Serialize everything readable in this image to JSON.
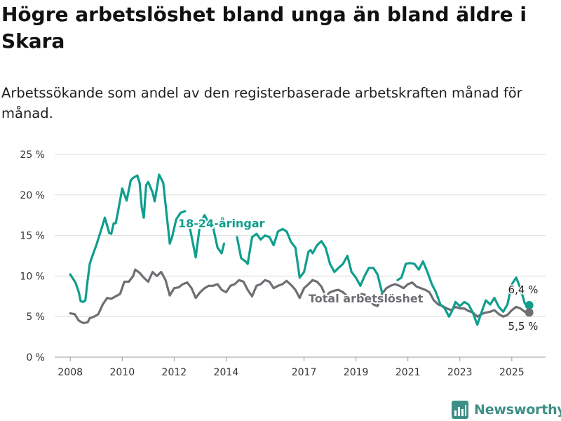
{
  "title": "Högre arbetslöshet bland unga än bland äldre i Skara",
  "subtitle": "Arbetssökande som andel av den registerbaserade arbetskraften månad för månad.",
  "brand": "Newsworthy",
  "colors": {
    "youth": "#0f9e8e",
    "total": "#6e6e73",
    "grid": "#dcdcdc",
    "brand": "#3e8f86"
  },
  "chart_data": {
    "type": "line",
    "x_unit": "year (decimal)",
    "y_unit": "percent",
    "xlim": [
      2007.4,
      2026.3
    ],
    "ylim": [
      0,
      25
    ],
    "grid": true,
    "yticks": [
      0,
      5,
      10,
      15,
      20,
      25
    ],
    "ytick_labels": [
      "0 %",
      "5 %",
      "10 %",
      "15 %",
      "20 %",
      "25 %"
    ],
    "xticks": [
      2008,
      2010,
      2012,
      2014,
      2017,
      2019,
      2021,
      2023,
      2025
    ],
    "xtick_labels": [
      "2008",
      "2010",
      "2012",
      "2014",
      "2017",
      "2019",
      "2021",
      "2023",
      "2025"
    ],
    "series": [
      {
        "name": "18-24-åringar",
        "color": "#0f9e8e",
        "end_label": "6,4 %",
        "points": [
          [
            2008.0,
            10.2
          ],
          [
            2008.2,
            9.2
          ],
          [
            2008.33,
            8.0
          ],
          [
            2008.4,
            6.9
          ],
          [
            2008.5,
            6.8
          ],
          [
            2008.58,
            7.0
          ],
          [
            2008.67,
            9.5
          ],
          [
            2008.75,
            11.5
          ],
          [
            2008.83,
            12.3
          ],
          [
            2009.0,
            13.8
          ],
          [
            2009.17,
            15.5
          ],
          [
            2009.33,
            17.2
          ],
          [
            2009.5,
            15.3
          ],
          [
            2009.58,
            15.2
          ],
          [
            2009.67,
            16.5
          ],
          [
            2009.75,
            16.5
          ],
          [
            2009.83,
            17.8
          ],
          [
            2010.0,
            20.8
          ],
          [
            2010.17,
            19.3
          ],
          [
            2010.33,
            21.8
          ],
          [
            2010.42,
            22.1
          ],
          [
            2010.58,
            22.4
          ],
          [
            2010.67,
            21.5
          ],
          [
            2010.75,
            18.5
          ],
          [
            2010.83,
            17.2
          ],
          [
            2010.92,
            21.2
          ],
          [
            2011.0,
            21.6
          ],
          [
            2011.17,
            20.3
          ],
          [
            2011.25,
            19.2
          ],
          [
            2011.42,
            22.5
          ],
          [
            2011.58,
            21.5
          ],
          [
            2011.83,
            14.0
          ],
          [
            2011.92,
            14.8
          ],
          [
            2012.08,
            17.0
          ],
          [
            2012.25,
            17.8
          ],
          [
            2012.42,
            18.0
          ]
        ],
        "points_2": [
          [
            2012.6,
            16.0
          ],
          [
            2012.83,
            12.3
          ],
          [
            2013.0,
            16.5
          ],
          [
            2013.17,
            17.5
          ],
          [
            2013.33,
            16.5
          ],
          [
            2013.5,
            16.0
          ],
          [
            2013.67,
            13.5
          ],
          [
            2013.83,
            12.8
          ],
          [
            2013.92,
            14.0
          ]
        ],
        "points_3": [
          [
            2014.42,
            14.8
          ],
          [
            2014.58,
            12.2
          ],
          [
            2014.75,
            11.8
          ],
          [
            2014.83,
            11.5
          ],
          [
            2015.0,
            14.8
          ],
          [
            2015.17,
            15.2
          ],
          [
            2015.33,
            14.5
          ],
          [
            2015.5,
            15.0
          ],
          [
            2015.67,
            14.8
          ],
          [
            2015.83,
            13.8
          ],
          [
            2016.0,
            15.5
          ],
          [
            2016.17,
            15.8
          ],
          [
            2016.33,
            15.5
          ],
          [
            2016.5,
            14.2
          ],
          [
            2016.67,
            13.5
          ],
          [
            2016.83,
            9.8
          ],
          [
            2017.0,
            10.5
          ],
          [
            2017.17,
            13.0
          ],
          [
            2017.25,
            13.2
          ],
          [
            2017.33,
            12.8
          ],
          [
            2017.5,
            13.8
          ],
          [
            2017.67,
            14.3
          ],
          [
            2017.83,
            13.5
          ],
          [
            2018.0,
            11.5
          ],
          [
            2018.17,
            10.5
          ],
          [
            2018.33,
            11.0
          ],
          [
            2018.5,
            11.5
          ],
          [
            2018.67,
            12.5
          ],
          [
            2018.83,
            10.5
          ],
          [
            2019.0,
            9.8
          ],
          [
            2019.17,
            8.8
          ],
          [
            2019.33,
            10.0
          ],
          [
            2019.5,
            11.0
          ],
          [
            2019.67,
            11.0
          ],
          [
            2019.83,
            10.2
          ],
          [
            2020.0,
            8.0
          ]
        ],
        "points_4": [
          [
            2020.6,
            9.5
          ],
          [
            2020.75,
            9.8
          ],
          [
            2020.92,
            11.5
          ],
          [
            2021.08,
            11.6
          ],
          [
            2021.25,
            11.5
          ],
          [
            2021.42,
            10.8
          ],
          [
            2021.58,
            11.8
          ],
          [
            2021.75,
            10.5
          ],
          [
            2021.92,
            9.0
          ],
          [
            2022.08,
            8.0
          ],
          [
            2022.25,
            6.5
          ],
          [
            2022.42,
            6.0
          ],
          [
            2022.58,
            5.0
          ],
          [
            2022.67,
            5.5
          ],
          [
            2022.83,
            6.8
          ],
          [
            2023.0,
            6.3
          ],
          [
            2023.17,
            6.8
          ],
          [
            2023.33,
            6.5
          ],
          [
            2023.5,
            5.5
          ],
          [
            2023.67,
            4.0
          ],
          [
            2023.83,
            5.5
          ],
          [
            2024.0,
            7.0
          ],
          [
            2024.17,
            6.5
          ],
          [
            2024.33,
            7.3
          ],
          [
            2024.5,
            6.2
          ],
          [
            2024.67,
            5.6
          ],
          [
            2024.83,
            6.5
          ],
          [
            2025.0,
            9.0
          ],
          [
            2025.17,
            9.8
          ],
          [
            2025.33,
            8.5
          ],
          [
            2025.5,
            6.6
          ],
          [
            2025.67,
            6.4
          ]
        ]
      },
      {
        "name": "Total arbetslöshet",
        "color": "#6e6e73",
        "end_label": "5,5 %",
        "points": [
          [
            2008.0,
            5.4
          ],
          [
            2008.17,
            5.3
          ],
          [
            2008.33,
            4.5
          ],
          [
            2008.5,
            4.2
          ],
          [
            2008.67,
            4.3
          ],
          [
            2008.75,
            4.8
          ],
          [
            2008.92,
            5.0
          ],
          [
            2009.08,
            5.3
          ],
          [
            2009.25,
            6.5
          ],
          [
            2009.42,
            7.3
          ],
          [
            2009.58,
            7.2
          ],
          [
            2009.75,
            7.5
          ],
          [
            2009.92,
            7.8
          ],
          [
            2010.08,
            9.3
          ],
          [
            2010.25,
            9.3
          ],
          [
            2010.42,
            10.0
          ],
          [
            2010.5,
            10.8
          ],
          [
            2010.67,
            10.4
          ],
          [
            2010.83,
            9.8
          ],
          [
            2011.0,
            9.3
          ],
          [
            2011.17,
            10.5
          ],
          [
            2011.33,
            10.0
          ],
          [
            2011.5,
            10.5
          ],
          [
            2011.67,
            9.5
          ],
          [
            2011.83,
            7.6
          ],
          [
            2012.0,
            8.5
          ],
          [
            2012.17,
            8.6
          ],
          [
            2012.33,
            9.0
          ],
          [
            2012.5,
            9.2
          ],
          [
            2012.67,
            8.5
          ],
          [
            2012.83,
            7.3
          ],
          [
            2013.0,
            8.0
          ],
          [
            2013.17,
            8.5
          ],
          [
            2013.33,
            8.8
          ],
          [
            2013.5,
            8.8
          ],
          [
            2013.67,
            9.0
          ],
          [
            2013.83,
            8.3
          ],
          [
            2014.0,
            8.0
          ],
          [
            2014.17,
            8.8
          ],
          [
            2014.33,
            9.0
          ],
          [
            2014.5,
            9.5
          ],
          [
            2014.67,
            9.3
          ],
          [
            2014.83,
            8.3
          ],
          [
            2015.0,
            7.5
          ],
          [
            2015.17,
            8.8
          ],
          [
            2015.33,
            9.0
          ],
          [
            2015.5,
            9.5
          ],
          [
            2015.67,
            9.3
          ],
          [
            2015.83,
            8.5
          ],
          [
            2016.0,
            8.8
          ],
          [
            2016.17,
            9.0
          ],
          [
            2016.33,
            9.4
          ],
          [
            2016.5,
            8.9
          ],
          [
            2016.67,
            8.3
          ],
          [
            2016.83,
            7.3
          ],
          [
            2017.0,
            8.5
          ],
          [
            2017.17,
            9.0
          ],
          [
            2017.33,
            9.5
          ],
          [
            2017.5,
            9.3
          ],
          [
            2017.67,
            8.7
          ],
          [
            2017.83,
            7.5
          ],
          [
            2018.0,
            8.0
          ],
          [
            2018.17,
            8.2
          ],
          [
            2018.33,
            8.3
          ],
          [
            2018.5,
            8.0
          ],
          [
            2018.67,
            7.5
          ],
          [
            2018.83,
            7.0
          ],
          [
            2019.0,
            7.5
          ],
          [
            2019.17,
            7.8
          ],
          [
            2019.33,
            7.7
          ],
          [
            2019.5,
            7.2
          ],
          [
            2019.67,
            6.5
          ],
          [
            2019.83,
            6.3
          ],
          [
            2020.0,
            7.8
          ],
          [
            2020.17,
            8.5
          ],
          [
            2020.33,
            8.8
          ],
          [
            2020.5,
            9.0
          ],
          [
            2020.67,
            8.8
          ],
          [
            2020.83,
            8.5
          ],
          [
            2021.0,
            9.0
          ],
          [
            2021.17,
            9.2
          ],
          [
            2021.33,
            8.7
          ],
          [
            2021.5,
            8.5
          ],
          [
            2021.67,
            8.3
          ],
          [
            2021.83,
            8.0
          ],
          [
            2022.0,
            7.0
          ],
          [
            2022.17,
            6.5
          ],
          [
            2022.33,
            6.3
          ],
          [
            2022.5,
            6.0
          ],
          [
            2022.67,
            5.8
          ],
          [
            2022.83,
            6.2
          ],
          [
            2023.0,
            6.0
          ],
          [
            2023.17,
            6.0
          ],
          [
            2023.33,
            5.7
          ],
          [
            2023.5,
            5.5
          ],
          [
            2023.67,
            5.0
          ],
          [
            2023.83,
            5.3
          ],
          [
            2024.0,
            5.5
          ],
          [
            2024.17,
            5.6
          ],
          [
            2024.33,
            5.8
          ],
          [
            2024.5,
            5.3
          ],
          [
            2024.67,
            5.0
          ],
          [
            2024.83,
            5.2
          ],
          [
            2025.0,
            5.8
          ],
          [
            2025.17,
            6.2
          ],
          [
            2025.33,
            6.0
          ],
          [
            2025.5,
            5.6
          ],
          [
            2025.67,
            5.5
          ]
        ]
      }
    ]
  }
}
